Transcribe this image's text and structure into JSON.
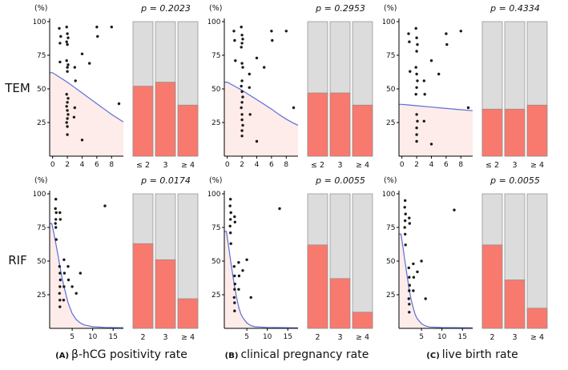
{
  "figure": {
    "percent_label": "(%)",
    "rows": [
      {
        "label": "TEM"
      },
      {
        "label": "RIF"
      }
    ],
    "captions": [
      {
        "prefix": "(A)",
        "text": "β-hCG positivity rate"
      },
      {
        "prefix": "(B)",
        "text": "clinical pregnancy rate"
      },
      {
        "prefix": "(C)",
        "text": "live birth rate"
      }
    ]
  },
  "colors": {
    "bar_red": "#f8796e",
    "bar_gray": "#dcdcdc",
    "bar_outline": "#8c8c8c",
    "curve_blue": "#5a6fd6",
    "area_pink": "#fdecea",
    "point": "#1a1a1a",
    "axis": "#000000"
  },
  "chart_data": [
    {
      "type": "scatter",
      "group": "TEM",
      "outcome": "β-hCG positivity rate",
      "p_label": "p = 0.2023",
      "scatter": {
        "x_domain": [
          -0.4,
          9.6
        ],
        "x_ticks": [
          0,
          2,
          4,
          6,
          8
        ],
        "y_ticks": [
          25,
          50,
          75,
          100
        ],
        "ylim": [
          0,
          100
        ],
        "points": [
          [
            0.9,
            95
          ],
          [
            1.1,
            89
          ],
          [
            1,
            84
          ],
          [
            1,
            70
          ],
          [
            1.9,
            96
          ],
          [
            2,
            91
          ],
          [
            2.1,
            88
          ],
          [
            1.9,
            85
          ],
          [
            2,
            83
          ],
          [
            1.9,
            71
          ],
          [
            2.1,
            68
          ],
          [
            2,
            66
          ],
          [
            2,
            63
          ],
          [
            1.9,
            46
          ],
          [
            2.1,
            43
          ],
          [
            2,
            40
          ],
          [
            1.9,
            37
          ],
          [
            2,
            34
          ],
          [
            2.1,
            31
          ],
          [
            2,
            28
          ],
          [
            1.9,
            25
          ],
          [
            2,
            22
          ],
          [
            2,
            16
          ],
          [
            3,
            66
          ],
          [
            3.1,
            56
          ],
          [
            3,
            36
          ],
          [
            2.9,
            29
          ],
          [
            4,
            76
          ],
          [
            4,
            12
          ],
          [
            5,
            69
          ],
          [
            6,
            96
          ],
          [
            6.1,
            89
          ],
          [
            8,
            96
          ],
          [
            9,
            39
          ]
        ],
        "curve": [
          [
            0,
            62
          ],
          [
            1,
            58.5
          ],
          [
            2,
            55
          ],
          [
            3,
            51
          ],
          [
            4,
            47
          ],
          [
            5,
            43
          ],
          [
            6,
            39
          ],
          [
            7,
            35
          ],
          [
            8,
            31
          ],
          [
            9,
            27.5
          ],
          [
            9.6,
            25.5
          ]
        ]
      },
      "bars": {
        "categories": [
          "≤ 2",
          "3",
          "≥ 4"
        ],
        "values": [
          52,
          55,
          38
        ],
        "ylim": [
          0,
          100
        ]
      }
    },
    {
      "type": "scatter",
      "group": "TEM",
      "outcome": "clinical pregnancy rate",
      "p_label": "p = 0.2953",
      "scatter": {
        "x_domain": [
          -0.4,
          9.6
        ],
        "x_ticks": [
          0,
          2,
          4,
          6,
          8
        ],
        "y_ticks": [
          25,
          50,
          75,
          100
        ],
        "ylim": [
          0,
          100
        ],
        "points": [
          [
            0.9,
            93
          ],
          [
            1,
            86
          ],
          [
            1.1,
            71
          ],
          [
            1.9,
            96
          ],
          [
            2,
            90
          ],
          [
            2.1,
            87
          ],
          [
            2,
            84
          ],
          [
            1.9,
            81
          ],
          [
            2,
            69
          ],
          [
            2.1,
            66
          ],
          [
            2,
            56
          ],
          [
            1.9,
            52
          ],
          [
            2,
            48
          ],
          [
            2.1,
            44
          ],
          [
            2,
            40
          ],
          [
            1.9,
            36
          ],
          [
            2,
            31
          ],
          [
            2,
            27
          ],
          [
            2.1,
            23
          ],
          [
            2,
            19
          ],
          [
            2,
            15
          ],
          [
            3,
            61
          ],
          [
            3,
            51
          ],
          [
            3.1,
            31
          ],
          [
            4,
            73
          ],
          [
            4,
            11
          ],
          [
            5,
            66
          ],
          [
            6,
            93
          ],
          [
            6.1,
            86
          ],
          [
            8,
            93
          ],
          [
            9,
            36
          ]
        ],
        "curve": [
          [
            0,
            55
          ],
          [
            1,
            52
          ],
          [
            2,
            49
          ],
          [
            3,
            45.5
          ],
          [
            4,
            42
          ],
          [
            5,
            38.5
          ],
          [
            6,
            35
          ],
          [
            7,
            31
          ],
          [
            8,
            27.5
          ],
          [
            9,
            24.5
          ],
          [
            9.6,
            23
          ]
        ]
      },
      "bars": {
        "categories": [
          "≤ 2",
          "3",
          "≥ 4"
        ],
        "values": [
          47,
          47,
          38
        ],
        "ylim": [
          0,
          100
        ]
      }
    },
    {
      "type": "scatter",
      "group": "TEM",
      "outcome": "live birth rate",
      "p_label": "p = 0.4334",
      "scatter": {
        "x_domain": [
          -0.4,
          9.6
        ],
        "x_ticks": [
          0,
          2,
          4,
          6,
          8
        ],
        "y_ticks": [
          25,
          50,
          75,
          100
        ],
        "ylim": [
          0,
          100
        ],
        "points": [
          [
            0.9,
            91
          ],
          [
            1,
            85
          ],
          [
            1.1,
            63
          ],
          [
            1.9,
            95
          ],
          [
            2,
            88
          ],
          [
            2.1,
            83
          ],
          [
            2,
            78
          ],
          [
            1.9,
            66
          ],
          [
            2,
            61
          ],
          [
            2.1,
            56
          ],
          [
            2,
            51
          ],
          [
            1.9,
            46
          ],
          [
            2,
            31
          ],
          [
            2.1,
            26
          ],
          [
            2,
            21
          ],
          [
            2,
            16
          ],
          [
            2,
            11
          ],
          [
            3,
            56
          ],
          [
            3.1,
            46
          ],
          [
            3,
            26
          ],
          [
            4,
            71
          ],
          [
            4,
            9
          ],
          [
            5,
            61
          ],
          [
            6,
            91
          ],
          [
            6.1,
            83
          ],
          [
            8,
            93
          ],
          [
            9,
            36
          ]
        ],
        "curve": [
          [
            0,
            38.5
          ],
          [
            2,
            37.5
          ],
          [
            4,
            36.5
          ],
          [
            6,
            35.5
          ],
          [
            8,
            34.5
          ],
          [
            9.6,
            33.8
          ]
        ]
      },
      "bars": {
        "categories": [
          "≤ 2",
          "3",
          "≥ 4"
        ],
        "values": [
          35,
          35,
          38
        ],
        "ylim": [
          0,
          100
        ]
      }
    },
    {
      "type": "scatter",
      "group": "RIF",
      "outcome": "β-hCG positivity rate",
      "p_label": "p = 0.0174",
      "scatter": {
        "x_domain": [
          -0.5,
          17.5
        ],
        "x_ticks": [
          5,
          10,
          15
        ],
        "y_ticks": [
          25,
          50,
          75,
          100
        ],
        "ylim": [
          0,
          100
        ],
        "points": [
          [
            1,
            96
          ],
          [
            0.9,
            89
          ],
          [
            1.1,
            86
          ],
          [
            1,
            81
          ],
          [
            0.9,
            78
          ],
          [
            1,
            75
          ],
          [
            1.1,
            66
          ],
          [
            2,
            86
          ],
          [
            2.1,
            81
          ],
          [
            1.9,
            46
          ],
          [
            2,
            41
          ],
          [
            2.1,
            36
          ],
          [
            2,
            31
          ],
          [
            1.9,
            26
          ],
          [
            2,
            21
          ],
          [
            2,
            16
          ],
          [
            3,
            51
          ],
          [
            3.1,
            41
          ],
          [
            3,
            31
          ],
          [
            2.9,
            21
          ],
          [
            4,
            46
          ],
          [
            4.1,
            36
          ],
          [
            5,
            31
          ],
          [
            6,
            26
          ],
          [
            7,
            41
          ],
          [
            13,
            91
          ]
        ],
        "curve": [
          [
            0,
            78
          ],
          [
            0.5,
            71
          ],
          [
            1,
            63
          ],
          [
            1.5,
            55
          ],
          [
            2,
            46
          ],
          [
            2.5,
            38
          ],
          [
            3,
            31
          ],
          [
            3.5,
            25
          ],
          [
            4,
            19
          ],
          [
            5,
            11
          ],
          [
            6,
            6.5
          ],
          [
            7,
            4
          ],
          [
            8,
            2.5
          ],
          [
            10,
            1.2
          ],
          [
            13,
            0.7
          ],
          [
            17.5,
            0.5
          ]
        ]
      },
      "bars": {
        "categories": [
          "2",
          "3",
          "≥ 4"
        ],
        "values": [
          63,
          51,
          22
        ],
        "ylim": [
          0,
          100
        ]
      }
    },
    {
      "type": "scatter",
      "group": "RIF",
      "outcome": "clinical pregnancy rate",
      "p_label": "p = 0.0055",
      "scatter": {
        "x_domain": [
          -0.5,
          17.5
        ],
        "x_ticks": [
          5,
          10,
          15
        ],
        "y_ticks": [
          25,
          50,
          75,
          100
        ],
        "ylim": [
          0,
          100
        ],
        "points": [
          [
            1,
            96
          ],
          [
            0.9,
            91
          ],
          [
            1.1,
            86
          ],
          [
            1,
            81
          ],
          [
            0.9,
            76
          ],
          [
            1,
            71
          ],
          [
            1.1,
            63
          ],
          [
            2,
            83
          ],
          [
            2.1,
            79
          ],
          [
            1.9,
            46
          ],
          [
            2,
            39
          ],
          [
            2.1,
            33
          ],
          [
            2,
            29
          ],
          [
            1.9,
            23
          ],
          [
            2,
            19
          ],
          [
            2,
            13
          ],
          [
            3,
            49
          ],
          [
            3.1,
            39
          ],
          [
            3,
            29
          ],
          [
            4,
            43
          ],
          [
            5,
            51
          ],
          [
            6,
            23
          ],
          [
            13,
            89
          ]
        ],
        "curve": [
          [
            0,
            72
          ],
          [
            0.5,
            62
          ],
          [
            1,
            51
          ],
          [
            1.5,
            41
          ],
          [
            2,
            31
          ],
          [
            2.5,
            23
          ],
          [
            3,
            16
          ],
          [
            3.5,
            11
          ],
          [
            4,
            8
          ],
          [
            5,
            4
          ],
          [
            6,
            2
          ],
          [
            7,
            1.2
          ],
          [
            10,
            0.7
          ],
          [
            17.5,
            0.4
          ]
        ]
      },
      "bars": {
        "categories": [
          "2",
          "3",
          "≥ 4"
        ],
        "values": [
          62,
          37,
          12
        ],
        "ylim": [
          0,
          100
        ]
      }
    },
    {
      "type": "scatter",
      "group": "RIF",
      "outcome": "live birth rate",
      "p_label": "p = 0.0055",
      "scatter": {
        "x_domain": [
          -0.5,
          17.5
        ],
        "x_ticks": [
          5,
          10,
          15
        ],
        "y_ticks": [
          25,
          50,
          75,
          100
        ],
        "ylim": [
          0,
          100
        ],
        "points": [
          [
            1,
            95
          ],
          [
            0.9,
            90
          ],
          [
            1.1,
            85
          ],
          [
            1,
            80
          ],
          [
            0.9,
            75
          ],
          [
            1,
            70
          ],
          [
            1.1,
            62
          ],
          [
            2,
            82
          ],
          [
            2.1,
            78
          ],
          [
            1.9,
            45
          ],
          [
            2,
            38
          ],
          [
            2.1,
            32
          ],
          [
            2,
            28
          ],
          [
            1.9,
            22
          ],
          [
            2,
            18
          ],
          [
            2,
            12
          ],
          [
            3,
            48
          ],
          [
            3.1,
            38
          ],
          [
            3,
            28
          ],
          [
            4,
            42
          ],
          [
            5,
            50
          ],
          [
            6,
            22
          ],
          [
            13,
            88
          ]
        ],
        "curve": [
          [
            0,
            70
          ],
          [
            0.5,
            60
          ],
          [
            1,
            49
          ],
          [
            1.5,
            39
          ],
          [
            2,
            29
          ],
          [
            2.5,
            21
          ],
          [
            3,
            15
          ],
          [
            3.5,
            10
          ],
          [
            4,
            7
          ],
          [
            5,
            3.5
          ],
          [
            6,
            1.8
          ],
          [
            7,
            1
          ],
          [
            10,
            0.6
          ],
          [
            17.5,
            0.4
          ]
        ]
      },
      "bars": {
        "categories": [
          "2",
          "3",
          "≥ 4"
        ],
        "values": [
          62,
          36,
          15
        ],
        "ylim": [
          0,
          100
        ]
      }
    }
  ]
}
